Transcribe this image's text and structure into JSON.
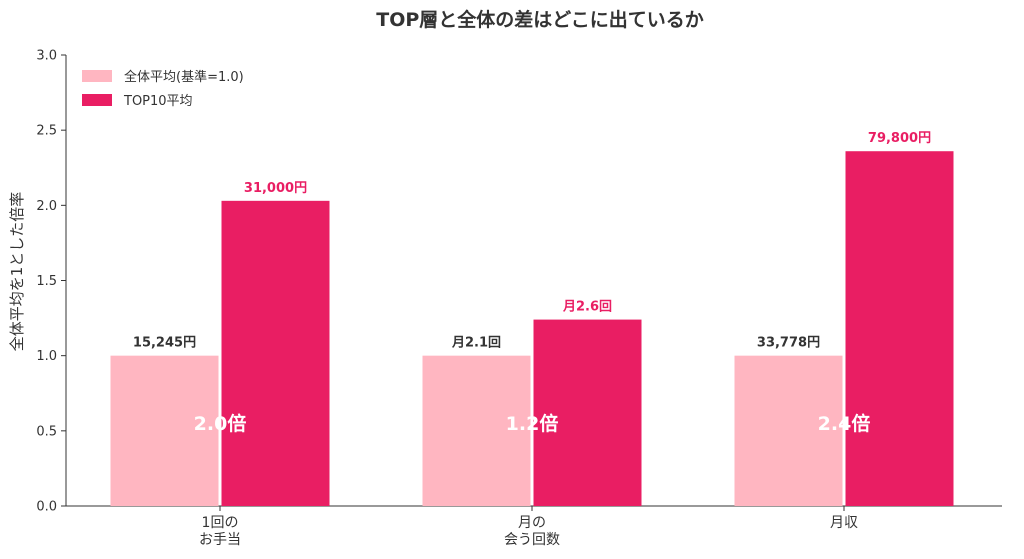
{
  "chart_data": {
    "type": "bar",
    "title": "TOP層と全体の差はどこに出ているか",
    "ylabel": "全体平均を1とした倍率",
    "xlabel": "",
    "ylim": [
      0,
      3.0
    ],
    "yticks": [
      "0.0",
      "0.5",
      "1.0",
      "1.5",
      "2.0",
      "2.5",
      "3.0"
    ],
    "categories": [
      [
        "1回の",
        "お手当"
      ],
      [
        "月の",
        "会う回数"
      ],
      [
        "月収"
      ]
    ],
    "series": [
      {
        "name": "全体平均(基準=1.0)",
        "color": "#ffb6c1",
        "values": [
          1.0,
          1.0,
          1.0
        ],
        "value_labels": [
          "15,245円",
          "月2.1回",
          "33,778円"
        ]
      },
      {
        "name": "TOP10平均",
        "color": "#e91e63",
        "values": [
          2.03,
          1.24,
          2.36
        ],
        "value_labels": [
          "31,000円",
          "月2.6回",
          "79,800円"
        ]
      }
    ],
    "multiplier_labels": [
      "2.0倍",
      "1.2倍",
      "2.4倍"
    ],
    "legend_position": "top-left",
    "grid": false
  }
}
